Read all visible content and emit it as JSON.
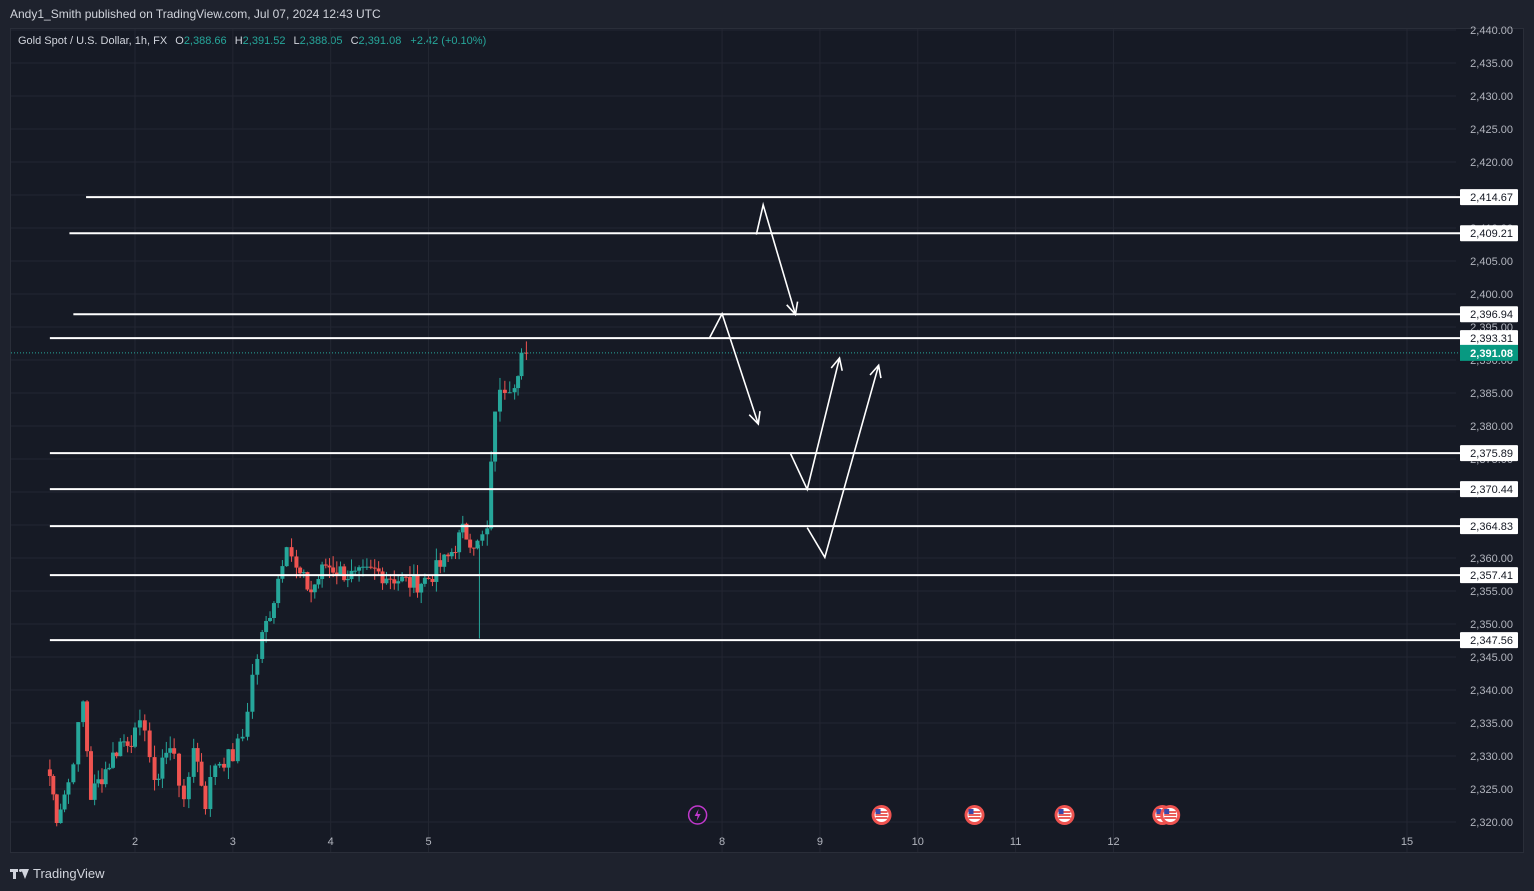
{
  "header": {
    "published": "Andy1_Smith published on TradingView.com, Jul 07, 2024 12:43 UTC"
  },
  "legend": {
    "symbol": "Gold Spot / U.S. Dollar, 1h, FX",
    "o_label": "O",
    "o_value": "2,388.66",
    "h_label": "H",
    "h_value": "2,391.52",
    "l_label": "L",
    "l_value": "2,388.05",
    "c_label": "C",
    "c_value": "2,391.08",
    "change": "+2.42 (+0.10%)"
  },
  "footer": {
    "brand": "TradingView"
  },
  "colors": {
    "up": "#26a69a",
    "down": "#ef5350",
    "background": "#161a25",
    "text": "#d1d4dc",
    "level_line": "#ffffff",
    "last_price_badge": "#089981",
    "event_icon": "#c038cc"
  },
  "chart_data": {
    "type": "candlestick",
    "symbol": "XAUUSD",
    "timeframe": "1h",
    "ylim": [
      2318,
      2441
    ],
    "xlim": [
      1.13,
      15.3
    ],
    "x_ticks": [
      {
        "value": 2,
        "label": "2"
      },
      {
        "value": 3,
        "label": "3"
      },
      {
        "value": 4,
        "label": "4"
      },
      {
        "value": 5,
        "label": "5"
      },
      {
        "value": 8,
        "label": "8"
      },
      {
        "value": 9,
        "label": "9"
      },
      {
        "value": 10,
        "label": "10"
      },
      {
        "value": 11,
        "label": "11"
      },
      {
        "value": 12,
        "label": "12"
      },
      {
        "value": 15,
        "label": "15"
      }
    ],
    "y_ticks": [
      2320,
      2325,
      2330,
      2335,
      2340,
      2345,
      2350,
      2355,
      2360,
      2365,
      2370,
      2375,
      2380,
      2385,
      2390,
      2395,
      2400,
      2405,
      2410,
      2415,
      2420,
      2425,
      2430,
      2435,
      2440
    ],
    "y_tick_labels": [
      "2,320.00",
      "2,325.00",
      "2,330.00",
      "2,335.00",
      "2,340.00",
      "2,345.00",
      "2,350.00",
      "2,355.00",
      "2,360.00",
      "2,365.00",
      "2,370.00",
      "2,375.00",
      "2,380.00",
      "2,385.00",
      "2,390.00",
      "2,395.00",
      "2,400.00",
      "2,405.00",
      "2,410.00",
      "2,415.00",
      "2,420.00",
      "2,425.00",
      "2,430.00",
      "2,435.00",
      "2,440.00"
    ],
    "last_price": {
      "value": 2391.08,
      "label": "2,391.08"
    },
    "levels": [
      {
        "value": 2414.67,
        "label": "2,414.67",
        "x_start": 1.5
      },
      {
        "value": 2409.21,
        "label": "2,409.21",
        "x_start": 1.33
      },
      {
        "value": 2396.94,
        "label": "2,396.94",
        "x_start": 1.37
      },
      {
        "value": 2393.31,
        "label": "2,393.31",
        "x_start": 1.13
      },
      {
        "value": 2375.89,
        "label": "2,375.89",
        "x_start": 1.13
      },
      {
        "value": 2370.44,
        "label": "2,370.44",
        "x_start": 1.13
      },
      {
        "value": 2364.83,
        "label": "2,364.83",
        "x_start": 1.13
      },
      {
        "value": 2357.41,
        "label": "2,357.41",
        "x_start": 1.13
      },
      {
        "value": 2347.56,
        "label": "2,347.56",
        "x_start": 1.13
      }
    ],
    "drawn_paths": [
      {
        "points": [
          [
            7.87,
            2393.3
          ],
          [
            8.0,
            2397.0
          ],
          [
            8.37,
            2380.3
          ]
        ],
        "arrow": true
      },
      {
        "points": [
          [
            8.35,
            2409.0
          ],
          [
            8.42,
            2413.5
          ],
          [
            8.75,
            2396.9
          ]
        ],
        "arrow": true
      },
      {
        "points": [
          [
            8.7,
            2375.8
          ],
          [
            8.87,
            2370.4
          ],
          [
            9.2,
            2390.3
          ]
        ],
        "arrow": true
      },
      {
        "points": [
          [
            8.87,
            2364.6
          ],
          [
            9.05,
            2360.1
          ],
          [
            9.6,
            2389.2
          ]
        ],
        "arrow": true
      }
    ],
    "event_markers": [
      {
        "x": 7.75,
        "kind": "dividend-flash"
      },
      {
        "x": 9.63,
        "kind": "us-flag"
      },
      {
        "x": 10.58,
        "kind": "us-flag"
      },
      {
        "x": 11.5,
        "kind": "us-flag"
      },
      {
        "x": 12.5,
        "kind": "us-flag"
      },
      {
        "x": 12.58,
        "kind": "us-flag"
      }
    ],
    "anchors": [
      [
        1.13,
        2327
      ],
      [
        1.2,
        2321
      ],
      [
        1.32,
        2326
      ],
      [
        1.42,
        2334
      ],
      [
        1.47,
        2338
      ],
      [
        1.55,
        2324
      ],
      [
        1.7,
        2328
      ],
      [
        1.85,
        2332
      ],
      [
        2.0,
        2333
      ],
      [
        2.1,
        2335
      ],
      [
        2.2,
        2325
      ],
      [
        2.28,
        2330
      ],
      [
        2.4,
        2331
      ],
      [
        2.5,
        2322
      ],
      [
        2.6,
        2332
      ],
      [
        2.72,
        2323
      ],
      [
        2.82,
        2329
      ],
      [
        3.0,
        2330
      ],
      [
        3.1,
        2333
      ],
      [
        3.2,
        2342
      ],
      [
        3.3,
        2348
      ],
      [
        3.42,
        2354
      ],
      [
        3.55,
        2363
      ],
      [
        3.65,
        2358
      ],
      [
        3.8,
        2355
      ],
      [
        3.95,
        2359
      ],
      [
        4.1,
        2358
      ],
      [
        4.25,
        2357
      ],
      [
        4.45,
        2358
      ],
      [
        4.65,
        2357
      ],
      [
        4.85,
        2356
      ],
      [
        5.0,
        2357
      ],
      [
        5.2,
        2360
      ],
      [
        5.35,
        2364
      ],
      [
        5.5,
        2362
      ],
      [
        5.6,
        2364
      ],
      [
        5.68,
        2383
      ],
      [
        5.78,
        2386
      ],
      [
        5.88,
        2387
      ],
      [
        5.95,
        2391
      ],
      [
        6.0,
        2391.08
      ]
    ],
    "candles_note": "approximate hourly path between anchors; rendered as up/down candles"
  }
}
